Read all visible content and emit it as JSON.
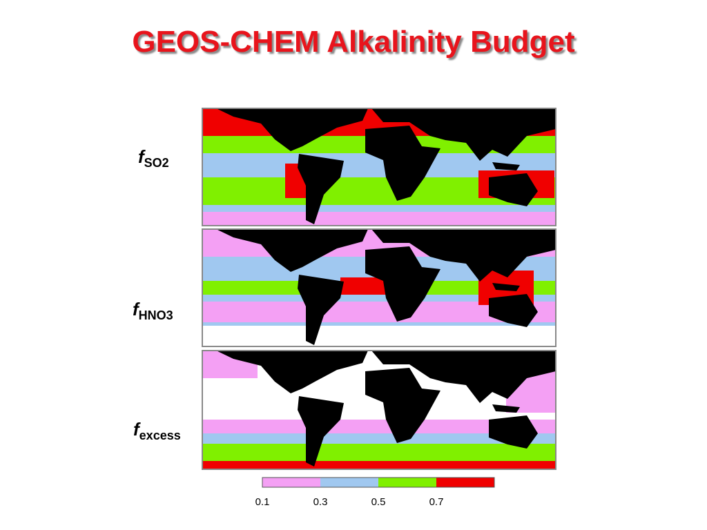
{
  "title": "GEOS-CHEM Alkalinity Budget",
  "panels": [
    {
      "label_f": "f",
      "label_sub": "SO2"
    },
    {
      "label_f": "f",
      "label_sub": "HNO3"
    },
    {
      "label_f": "f",
      "label_sub": "excess"
    }
  ],
  "colorbar": {
    "colors": [
      "#f4a0f4",
      "#a0c8f0",
      "#80f000",
      "#f00000"
    ],
    "ticks": [
      0.1,
      0.3,
      0.5,
      0.7
    ]
  }
}
